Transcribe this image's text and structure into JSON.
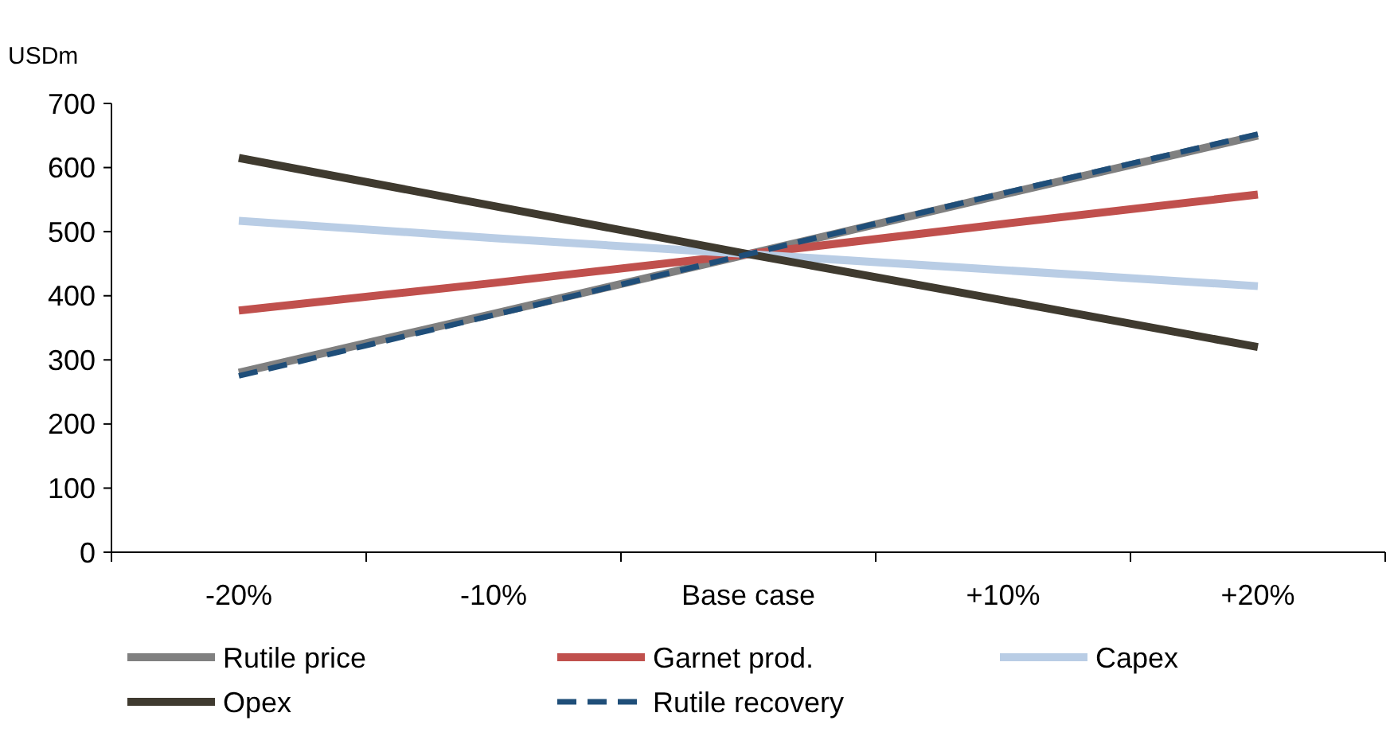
{
  "chart_data": {
    "type": "line",
    "ylabel": "USDm",
    "categories": [
      "-20%",
      "-10%",
      "Base case",
      "+10%",
      "+20%"
    ],
    "ylim": [
      0,
      700
    ],
    "yticks": [
      0,
      100,
      200,
      300,
      400,
      500,
      600,
      700
    ],
    "grid": false,
    "legend": "bottom",
    "series": [
      {
        "name": "Rutile price",
        "color": "#808080",
        "values": [
          280,
          372,
          465,
          558,
          650
        ],
        "line_style": "solid"
      },
      {
        "name": "Garnet prod.",
        "color": "#c0504d",
        "values": [
          377,
          420,
          465,
          512,
          558
        ],
        "line_style": "solid"
      },
      {
        "name": "Capex",
        "color": "#b9cde5",
        "values": [
          517,
          490,
          465,
          440,
          415
        ],
        "line_style": "solid"
      },
      {
        "name": "Opex",
        "color": "#3f3a2f",
        "values": [
          615,
          540,
          465,
          393,
          320
        ],
        "line_style": "solid"
      },
      {
        "name": "Rutile recovery",
        "color": "#1f4e79",
        "values": [
          275,
          370,
          465,
          560,
          652
        ],
        "line_style": "dashed"
      }
    ]
  }
}
